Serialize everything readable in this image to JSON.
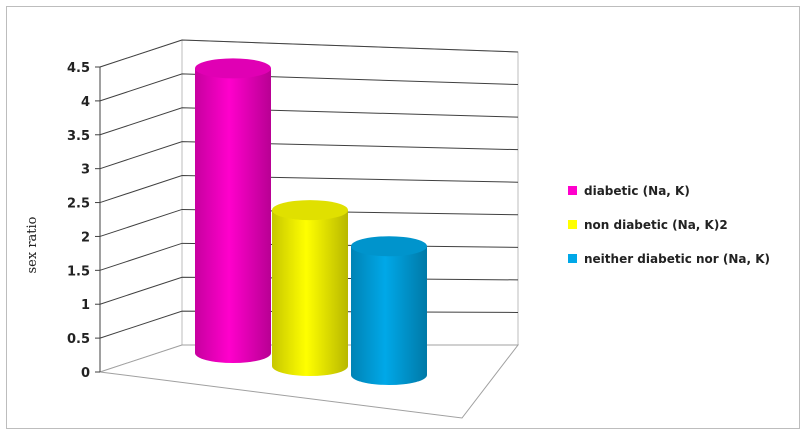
{
  "chart_data": {
    "type": "bar",
    "style": "3d-cylinder",
    "ylabel": "sex ratio",
    "ylim": [
      0,
      4.5
    ],
    "yticks": [
      "0",
      "0.5",
      "1",
      "1.5",
      "2",
      "2.5",
      "3",
      "3.5",
      "4",
      "4.5"
    ],
    "grid": true,
    "legend_position": "right",
    "series": [
      {
        "name": "diabetic (Na, K)",
        "value": 4.2,
        "color": "#ff00cc"
      },
      {
        "name": "non diabetic (Na, K)2",
        "value": 2.3,
        "color": "#ffff00"
      },
      {
        "name": "neither diabetic nor (Na, K)",
        "value": 1.9,
        "color": "#00a8e8"
      }
    ]
  }
}
